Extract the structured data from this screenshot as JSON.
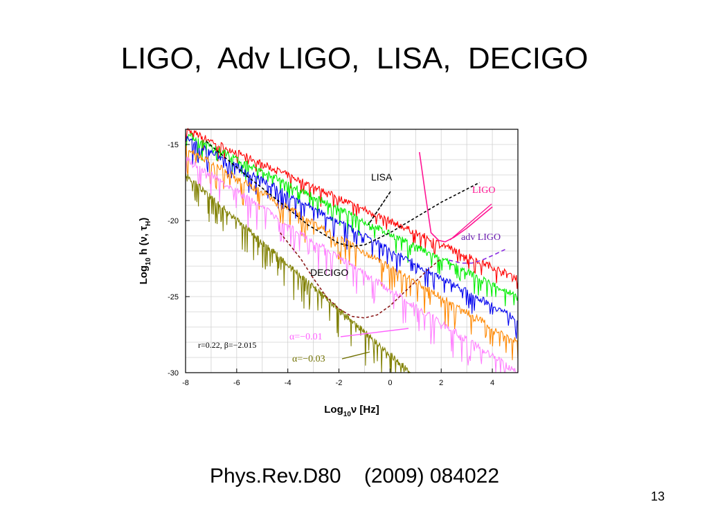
{
  "slide": {
    "title": "LIGO,  Adv LIGO,  LISA,  DECIGO",
    "citation": "Phys.Rev.D80    (2009) 084022",
    "page_number": "13"
  },
  "chart_data": {
    "type": "line",
    "xlabel": {
      "main": "Log",
      "sub": "10",
      "rest": "ν [Hz]"
    },
    "ylabel": {
      "main": "Log",
      "sub": "10",
      "rest": "h (ν, τ",
      "sub2": "H",
      "close": ")"
    },
    "xlim": [
      -8,
      5
    ],
    "ylim": [
      -30,
      -14
    ],
    "x_log_scale_display": "log10",
    "grid": true,
    "xticks": [
      -8,
      -6,
      -4,
      -2,
      0,
      2,
      4
    ],
    "yticks": [
      -15,
      -20,
      -25,
      -30
    ],
    "series": [
      {
        "color": "#ff0000",
        "start": [
          -8,
          -14.0
        ],
        "end": [
          5,
          -23.8
        ],
        "spike_depth": 1.0
      },
      {
        "color": "#00ee00",
        "start": [
          -8,
          -14.3
        ],
        "end": [
          5,
          -25.0
        ],
        "spike_depth": 1.2
      },
      {
        "color": "#0000ee",
        "start": [
          -8,
          -14.6
        ],
        "end": [
          5,
          -26.5
        ],
        "spike_depth": 1.4
      },
      {
        "color": "#ff8800",
        "start": [
          -8,
          -15.2
        ],
        "end": [
          5,
          -28.0
        ],
        "spike_depth": 1.6
      },
      {
        "color": "#ff80ff",
        "start": [
          -8,
          -15.9
        ],
        "end": [
          5,
          -30.0
        ],
        "spike_depth": 1.8
      },
      {
        "color": "#808000",
        "start": [
          -8,
          -17.0
        ],
        "end": [
          0.8,
          -30.0
        ],
        "spike_depth": 2.0
      }
    ],
    "sensitivity_curves": [
      {
        "name": "LISA",
        "color": "#000000",
        "dash": "4,3",
        "points": [
          [
            -7.2,
            -14.8
          ],
          [
            -5.5,
            -17.2
          ],
          [
            -4,
            -19.2
          ],
          [
            -3.2,
            -20.3
          ],
          [
            -2.5,
            -21.0
          ],
          [
            -2,
            -21.5
          ],
          [
            -1.5,
            -21.7
          ],
          [
            -1,
            -21.6
          ],
          [
            0,
            -20.8
          ],
          [
            1,
            -19.8
          ],
          [
            2,
            -18.8
          ],
          [
            3.5,
            -17.5
          ]
        ]
      },
      {
        "name": "LIGO",
        "color": "#ff1493",
        "dash": "",
        "points": [
          [
            1.15,
            -15.5
          ],
          [
            1.4,
            -18.5
          ],
          [
            1.6,
            -20.8
          ],
          [
            1.9,
            -21.3
          ],
          [
            2.15,
            -21.4
          ],
          [
            2.5,
            -21.1
          ],
          [
            3,
            -20.5
          ],
          [
            3.5,
            -19.8
          ],
          [
            4.0,
            -19.1
          ]
        ]
      },
      {
        "name": "adv LIGO",
        "color": "#8a2be2",
        "dash": "6,4",
        "points": [
          [
            2.3,
            -22.6
          ],
          [
            2.8,
            -22.8
          ],
          [
            3.2,
            -22.8
          ],
          [
            3.6,
            -22.6
          ],
          [
            4.0,
            -22.3
          ],
          [
            4.5,
            -21.9
          ]
        ]
      },
      {
        "name": "DECIGO",
        "color": "#8b1a1a",
        "dash": "4,3",
        "points": [
          [
            -4.3,
            -20.8
          ],
          [
            -3.5,
            -22.5
          ],
          [
            -3.0,
            -23.8
          ],
          [
            -2.5,
            -25.0
          ],
          [
            -2.0,
            -25.8
          ],
          [
            -1.5,
            -26.3
          ],
          [
            -1.0,
            -26.4
          ],
          [
            -0.5,
            -26.2
          ],
          [
            0,
            -25.6
          ],
          [
            0.5,
            -24.8
          ],
          [
            1.0,
            -24.0
          ],
          [
            1.5,
            -23.2
          ],
          [
            2.0,
            -22.5
          ]
        ]
      }
    ],
    "annotations": {
      "lisa": "LISA",
      "ligo": "LIGO",
      "adv_ligo": "adv LIGO",
      "decigo": "DECIGO",
      "params": "r=0.22, β=−2.015",
      "alpha1": "α=−0.01",
      "alpha2": "α=−0.03"
    }
  }
}
